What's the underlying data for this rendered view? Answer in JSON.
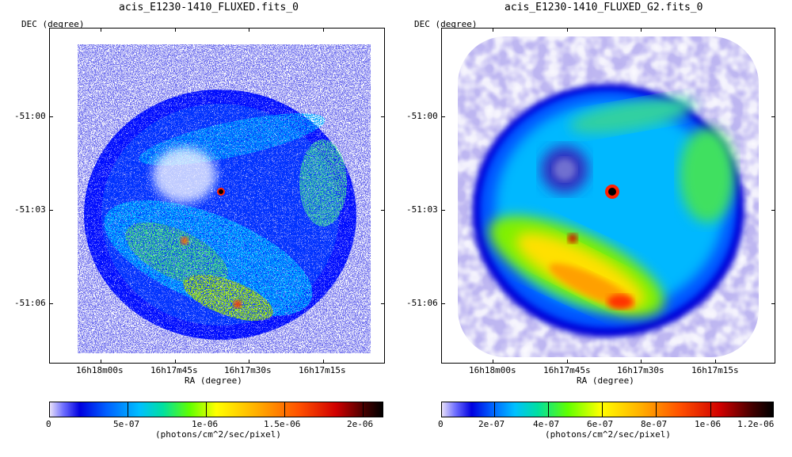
{
  "panels": [
    {
      "title": "acis_E1230-1410_FLUXED.fits_0",
      "ylabel": "DEC (degree)",
      "xlabel": "RA (degree)",
      "yticks": [
        "-51:00",
        "-51:03",
        "-51:06"
      ],
      "xticks": [
        "16h18m00s",
        "16h17m45s",
        "16h17m30s",
        "16h17m15s"
      ],
      "colorbar_ticks": [
        "0",
        "5e-07",
        "1e-06",
        "1.5e-06",
        "2e-06"
      ],
      "colorbar_unit": "(photons/cm^2/sec/pixel)",
      "style": "raw"
    },
    {
      "title": "acis_E1230-1410_FLUXED_G2.fits_0",
      "ylabel": "DEC (degree)",
      "xlabel": "RA (degree)",
      "yticks": [
        "-51:00",
        "-51:03",
        "-51:06"
      ],
      "xticks": [
        "16h18m00s",
        "16h17m45s",
        "16h17m30s",
        "16h17m15s"
      ],
      "colorbar_ticks": [
        "0",
        "2e-07",
        "4e-07",
        "6e-07",
        "8e-07",
        "1e-06",
        "1.2e-06"
      ],
      "colorbar_unit": "(photons/cm^2/sec/pixel)",
      "style": "smoothed"
    }
  ],
  "colors": {
    "colormap": [
      "#e8e0f8",
      "#7070ff",
      "#0000e0",
      "#0060ff",
      "#00c0ff",
      "#00e0a0",
      "#60ff00",
      "#ffff00",
      "#ffb000",
      "#ff5000",
      "#d00000",
      "#400000",
      "#000000"
    ]
  }
}
